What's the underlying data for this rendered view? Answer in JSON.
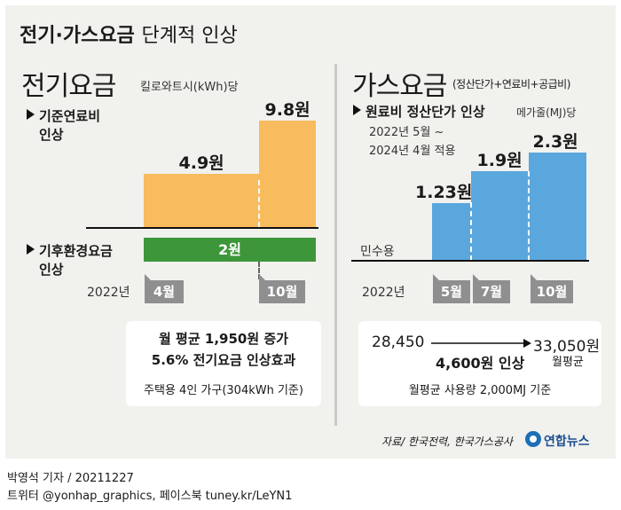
{
  "title": {
    "bold": "전기·가스요금",
    "light": "단계적 인상"
  },
  "electric": {
    "heading": "전기요금",
    "unit": "킬로와트시(kWh)당",
    "fuel_label_1": "기준연료비",
    "fuel_label_2": "인상",
    "climate_label_1": "기후환경요금",
    "climate_label_2": "인상",
    "year": "2022년",
    "tabs": [
      "4월",
      "10월"
    ],
    "box_line1": "월 평균 1,950원 증가",
    "box_line2": "5.6% 전기요금 인상효과",
    "box_line3": "주택용 4인 가구(304kWh 기준)"
  },
  "gas": {
    "heading": "가스요금",
    "heading_sub": "(정산단가+연료비+공급비)",
    "rate_label": "원료비 정산단가 인상",
    "unit": "메가줄(MJ)당",
    "period_1": "2022년 5월 ~",
    "period_2": "2024년 4월 적용",
    "residential": "민수용",
    "year": "2022년",
    "tabs": [
      "5월",
      "7월",
      "10월"
    ],
    "from_value": "28,450",
    "increase": "4,600원 인상",
    "to_value": "33,050원",
    "to_sub": "월평균",
    "box_note": "월평균 사용량 2,000MJ 기준"
  },
  "source": "자료/ 한국전력, 한국가스공사",
  "logo_text": "연합뉴스",
  "footer_line1": "박영석 기자 / 20211227",
  "footer_line2": "트위터 @yonhap_graphics, 페이스북 tuney.kr/LeYN1",
  "chart_data": [
    {
      "type": "bar",
      "title": "전기요금",
      "unit": "킬로와트시(kWh)당",
      "categories": [
        "4월",
        "10월"
      ],
      "series": [
        {
          "name": "기준연료비 인상",
          "values": [
            4.9,
            9.8
          ],
          "labels": [
            "4.9원",
            "9.8원"
          ],
          "color": "#f8bb5e"
        },
        {
          "name": "기후환경요금 인상",
          "values": [
            2,
            2
          ],
          "labels": [
            "2원"
          ],
          "color": "#3e963b"
        }
      ]
    },
    {
      "type": "bar",
      "title": "가스요금",
      "unit": "메가줄(MJ)당",
      "categories": [
        "5월",
        "7월",
        "10월"
      ],
      "series": [
        {
          "name": "원료비 정산단가 인상",
          "values": [
            1.23,
            1.9,
            2.3
          ],
          "labels": [
            "1.23원",
            "1.9원",
            "2.3원"
          ],
          "color": "#5aa7de"
        }
      ]
    }
  ]
}
